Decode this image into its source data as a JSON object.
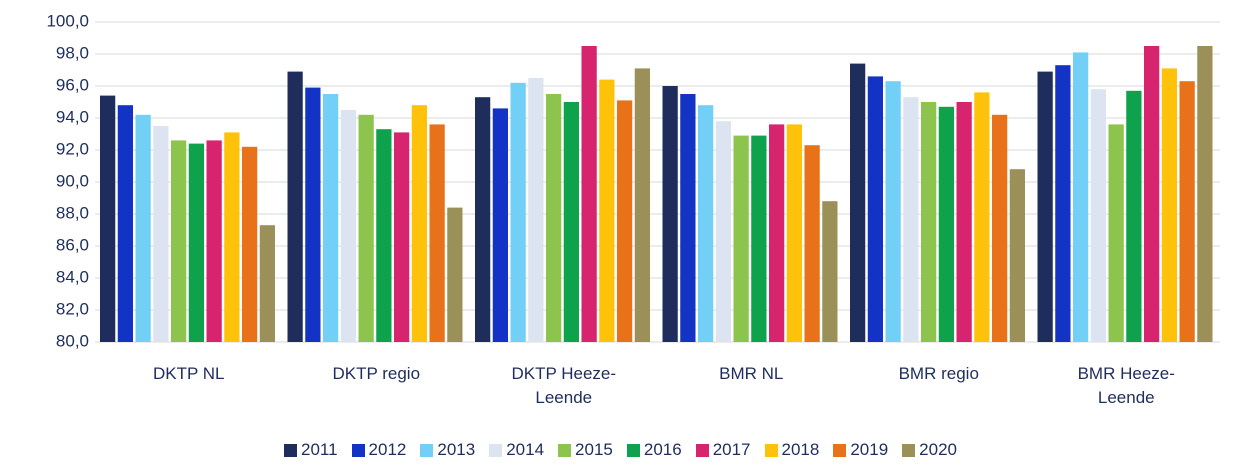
{
  "chart_data": {
    "type": "bar",
    "categories": [
      "DKTP NL",
      "DKTP regio",
      "DKTP Heeze-Leende",
      "BMR NL",
      "BMR regio",
      "BMR Heeze-Leende"
    ],
    "series": [
      {
        "name": "2011",
        "color": "#1f2d5c",
        "values": [
          95.4,
          96.9,
          95.3,
          96.0,
          97.4,
          96.9
        ]
      },
      {
        "name": "2012",
        "color": "#1233c4",
        "values": [
          94.8,
          95.9,
          94.6,
          95.5,
          96.6,
          97.3
        ]
      },
      {
        "name": "2013",
        "color": "#72d0f6",
        "values": [
          94.2,
          95.5,
          96.2,
          94.8,
          96.3,
          98.1
        ]
      },
      {
        "name": "2014",
        "color": "#dde4f1",
        "values": [
          93.5,
          94.5,
          96.5,
          93.8,
          95.3,
          95.8
        ]
      },
      {
        "name": "2015",
        "color": "#8dc44d",
        "values": [
          92.6,
          94.2,
          95.5,
          92.9,
          95.0,
          93.6
        ]
      },
      {
        "name": "2016",
        "color": "#0ea24c",
        "values": [
          92.4,
          93.3,
          95.0,
          92.9,
          94.7,
          95.7
        ]
      },
      {
        "name": "2017",
        "color": "#d6246f",
        "values": [
          92.6,
          93.1,
          98.5,
          93.6,
          95.0,
          98.5
        ]
      },
      {
        "name": "2018",
        "color": "#ffc20a",
        "values": [
          93.1,
          94.8,
          96.4,
          93.6,
          95.6,
          97.1
        ]
      },
      {
        "name": "2019",
        "color": "#e8721a",
        "values": [
          92.2,
          93.6,
          95.1,
          92.3,
          94.2,
          96.3
        ]
      },
      {
        "name": "2020",
        "color": "#9b9158",
        "values": [
          87.3,
          88.4,
          97.1,
          88.8,
          90.8,
          98.5
        ]
      }
    ],
    "ylim": [
      80,
      100
    ],
    "yticks": [
      {
        "value": 80,
        "label": "80,0"
      },
      {
        "value": 82,
        "label": "82,0"
      },
      {
        "value": 84,
        "label": "84,0"
      },
      {
        "value": 86,
        "label": "86,0"
      },
      {
        "value": 88,
        "label": "88,0"
      },
      {
        "value": 90,
        "label": "90,0"
      },
      {
        "value": 92,
        "label": "92,0"
      },
      {
        "value": 94,
        "label": "94,0"
      },
      {
        "value": 96,
        "label": "96,0"
      },
      {
        "value": 98,
        "label": "98,0"
      },
      {
        "value": 100,
        "label": "100,0"
      }
    ],
    "grid": true,
    "legend": "bottom"
  }
}
